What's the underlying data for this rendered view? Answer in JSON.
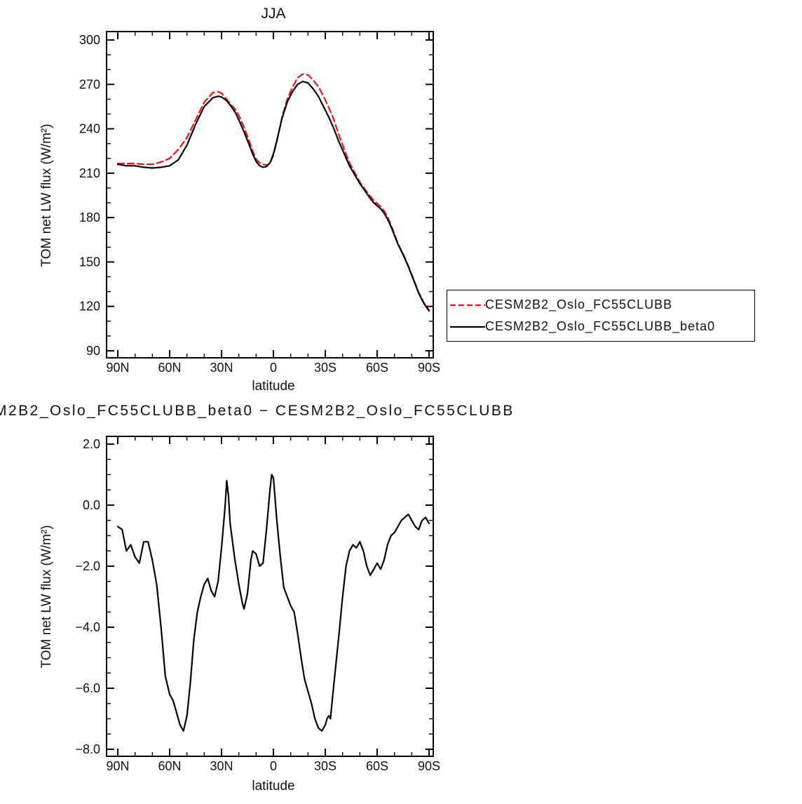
{
  "page": {
    "background": "#ffffff"
  },
  "colors": {
    "series_red": "#ee1111",
    "series_black": "#000000",
    "axis": "#000000"
  },
  "legend": {
    "entries": [
      {
        "label": "CESM2B2_Oslo_FC55CLUBB",
        "line": "red-dashed"
      },
      {
        "label": "CESM2B2_Oslo_FC55CLUBB_beta0",
        "line": "black-solid"
      }
    ]
  },
  "chart_data": [
    {
      "type": "line",
      "title": "JJA",
      "xlabel": "latitude",
      "ylabel": "TOM net LW flux (W/m²)",
      "x_tick_labels": [
        "90N",
        "60N",
        "30N",
        "0",
        "30S",
        "60S",
        "90S"
      ],
      "x_tick_values": [
        90,
        60,
        30,
        0,
        -30,
        -60,
        -90
      ],
      "x_minor_step": 10,
      "y_tick_labels": [
        "300",
        "270",
        "240",
        "210",
        "180",
        "150",
        "120",
        "90"
      ],
      "y_tick_values": [
        300,
        270,
        240,
        210,
        180,
        150,
        120,
        90
      ],
      "y_minor_step": 10,
      "ylim": [
        90,
        300
      ],
      "grid": false,
      "legend_position": "right-outside",
      "series": [
        {
          "name": "CESM2B2_Oslo_FC55CLUBB",
          "color": "#ee1111",
          "style": "dashed",
          "x": [
            90,
            85,
            80,
            75,
            70,
            65,
            60,
            55,
            50,
            45,
            40,
            35,
            32,
            30,
            27,
            25,
            22,
            20,
            17,
            15,
            12,
            10,
            8,
            6,
            4,
            2,
            0,
            -2,
            -5,
            -8,
            -11,
            -14,
            -17,
            -20,
            -23,
            -26,
            -29,
            -32,
            -35,
            -38,
            -41,
            -44,
            -47,
            -50,
            -53,
            -56,
            -58,
            -60,
            -62,
            -64,
            -66,
            -68,
            -70,
            -72,
            -75,
            -78,
            -81,
            -84,
            -87,
            -90
          ],
          "y": [
            216.5,
            216.5,
            216.5,
            216,
            216,
            217.5,
            220,
            226,
            234,
            246,
            258,
            264.5,
            265,
            264,
            260,
            257,
            253,
            249,
            241,
            235,
            225,
            219.5,
            217,
            216,
            215.5,
            216.5,
            222,
            231.5,
            248,
            260,
            268,
            274.5,
            277,
            276.5,
            273,
            268.5,
            262,
            254.5,
            246,
            235.5,
            226,
            217,
            210.5,
            204,
            199,
            194.5,
            191.5,
            189.5,
            187.5,
            184.5,
            180.5,
            175,
            169,
            162.5,
            155.5,
            147.5,
            138.5,
            129.5,
            122.5,
            117.5
          ]
        },
        {
          "name": "CESM2B2_Oslo_FC55CLUBB_beta0",
          "color": "#000000",
          "style": "solid",
          "x": [
            90,
            85,
            80,
            75,
            70,
            65,
            60,
            55,
            50,
            45,
            40,
            35,
            32,
            30,
            27,
            25,
            22,
            20,
            17,
            15,
            12,
            10,
            8,
            6,
            4,
            2,
            0,
            -2,
            -5,
            -8,
            -11,
            -14,
            -17,
            -20,
            -23,
            -26,
            -29,
            -32,
            -35,
            -38,
            -41,
            -44,
            -47,
            -50,
            -53,
            -56,
            -58,
            -60,
            -62,
            -64,
            -66,
            -68,
            -70,
            -72,
            -75,
            -78,
            -81,
            -84,
            -87,
            -90
          ],
          "y": [
            216,
            215,
            215,
            214,
            213.5,
            214,
            215,
            219,
            229,
            243,
            255,
            261,
            262,
            261.5,
            259,
            256,
            251,
            246,
            238,
            232,
            223,
            218,
            215,
            214,
            214.5,
            217,
            223,
            232,
            247,
            258,
            265,
            270,
            272,
            271,
            267,
            262,
            255,
            248,
            240,
            231,
            223,
            215,
            209,
            203,
            198,
            193,
            190,
            188,
            186,
            183,
            179,
            174,
            168,
            162,
            155,
            147,
            138,
            129,
            122,
            117
          ]
        }
      ]
    },
    {
      "type": "line",
      "title": "M2B2_Oslo_FC55CLUBB_beta0  −  CESM2B2_Oslo_FC55CLUBB",
      "title_clipped_left": true,
      "xlabel": "latitude",
      "ylabel": "TOM net LW flux (W/m²)",
      "x_tick_labels": [
        "90N",
        "60N",
        "30N",
        "0",
        "30S",
        "60S",
        "90S"
      ],
      "x_tick_values": [
        90,
        60,
        30,
        0,
        -30,
        -60,
        -90
      ],
      "x_minor_step": 10,
      "y_tick_labels": [
        "2.0",
        "0.0",
        "−2.0",
        "−4.0",
        "−6.0",
        "−8.0"
      ],
      "y_tick_values": [
        2,
        0,
        -2,
        -4,
        -6,
        -8
      ],
      "y_minor_step": 0.5,
      "ylim": [
        -8,
        2
      ],
      "grid": false,
      "series": [
        {
          "name": "CESM2B2_Oslo_FC55CLUBB_beta0 minus CESM2B2_Oslo_FC55CLUBB",
          "color": "#000000",
          "style": "solid",
          "x": [
            90,
            87.5,
            85,
            82.5,
            80,
            77.5,
            75,
            72.5,
            70,
            67.5,
            65,
            62.5,
            60,
            58,
            56,
            54,
            52,
            50,
            48,
            46,
            44,
            42,
            40,
            38,
            36,
            34,
            32,
            30,
            28,
            27,
            26,
            25,
            22.5,
            20,
            18,
            17,
            15,
            13,
            12,
            10,
            8,
            6,
            4,
            2,
            1,
            0,
            -2,
            -4,
            -6,
            -8,
            -10,
            -12,
            -14,
            -16,
            -18,
            -20,
            -22,
            -24,
            -26,
            -28,
            -30,
            -31,
            -32,
            -33,
            -34,
            -36,
            -38,
            -40,
            -42,
            -44,
            -46,
            -48,
            -50,
            -52,
            -54,
            -56,
            -58,
            -60,
            -62,
            -64,
            -66,
            -68,
            -70,
            -72,
            -74,
            -76,
            -78,
            -80,
            -82,
            -84,
            -86,
            -88,
            -90
          ],
          "y": [
            -0.7,
            -0.8,
            -1.5,
            -1.3,
            -1.7,
            -1.9,
            -1.2,
            -1.2,
            -1.8,
            -2.6,
            -4.0,
            -5.6,
            -6.2,
            -6.4,
            -6.8,
            -7.2,
            -7.4,
            -6.9,
            -5.8,
            -4.4,
            -3.5,
            -3.0,
            -2.6,
            -2.4,
            -2.8,
            -3.0,
            -2.5,
            -1.4,
            -0.1,
            0.8,
            0.3,
            -0.6,
            -1.7,
            -2.6,
            -3.2,
            -3.4,
            -2.9,
            -1.8,
            -1.5,
            -1.6,
            -2.0,
            -1.9,
            -0.8,
            0.5,
            1.0,
            0.9,
            -0.5,
            -1.7,
            -2.7,
            -3.0,
            -3.3,
            -3.5,
            -4.2,
            -5.0,
            -5.7,
            -6.1,
            -6.5,
            -7.0,
            -7.3,
            -7.4,
            -7.2,
            -7.0,
            -6.9,
            -7.0,
            -6.4,
            -5.3,
            -4.2,
            -3.0,
            -2.0,
            -1.5,
            -1.3,
            -1.4,
            -1.2,
            -1.5,
            -2.0,
            -2.3,
            -2.1,
            -1.9,
            -2.1,
            -1.8,
            -1.3,
            -1.0,
            -0.9,
            -0.7,
            -0.5,
            -0.4,
            -0.3,
            -0.5,
            -0.7,
            -0.8,
            -0.5,
            -0.4,
            -0.6
          ]
        }
      ]
    }
  ]
}
